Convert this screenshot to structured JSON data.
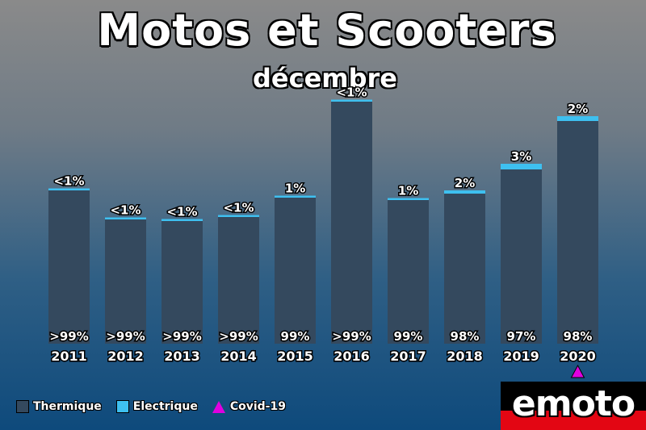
{
  "title": "Motos et Scooters",
  "subtitle": "décembre",
  "colors": {
    "thermique": "#34495e",
    "electrique": "#3ec0f0",
    "covid": "#e000e0"
  },
  "legend": {
    "thermique": "Thermique",
    "electrique": "Electrique",
    "covid": "Covid-19"
  },
  "logo_text": "emoto",
  "chart_data": {
    "type": "bar",
    "stacked": true,
    "categories": [
      "2011",
      "2012",
      "2013",
      "2014",
      "2015",
      "2016",
      "2017",
      "2018",
      "2019",
      "2020"
    ],
    "series": [
      {
        "name": "Thermique",
        "values": [
          190,
          154,
          152,
          157,
          181,
          300,
          178,
          186,
          216,
          276
        ],
        "labels": [
          ">99%",
          ">99%",
          ">99%",
          ">99%",
          "99%",
          ">99%",
          "99%",
          "98%",
          "97%",
          "98%"
        ]
      },
      {
        "name": "Electrique",
        "values": [
          1,
          1,
          1,
          1,
          2,
          1,
          2,
          4,
          7,
          6
        ],
        "labels": [
          "<1%",
          "<1%",
          "<1%",
          "<1%",
          "1%",
          "<1%",
          "1%",
          "2%",
          "3%",
          "2%"
        ]
      }
    ],
    "annotations": [
      {
        "category": "2020",
        "marker": "triangle",
        "meaning": "Covid-19"
      }
    ],
    "ylim": [
      0,
      310
    ],
    "grid": false,
    "legend_position": "bottom-left"
  }
}
